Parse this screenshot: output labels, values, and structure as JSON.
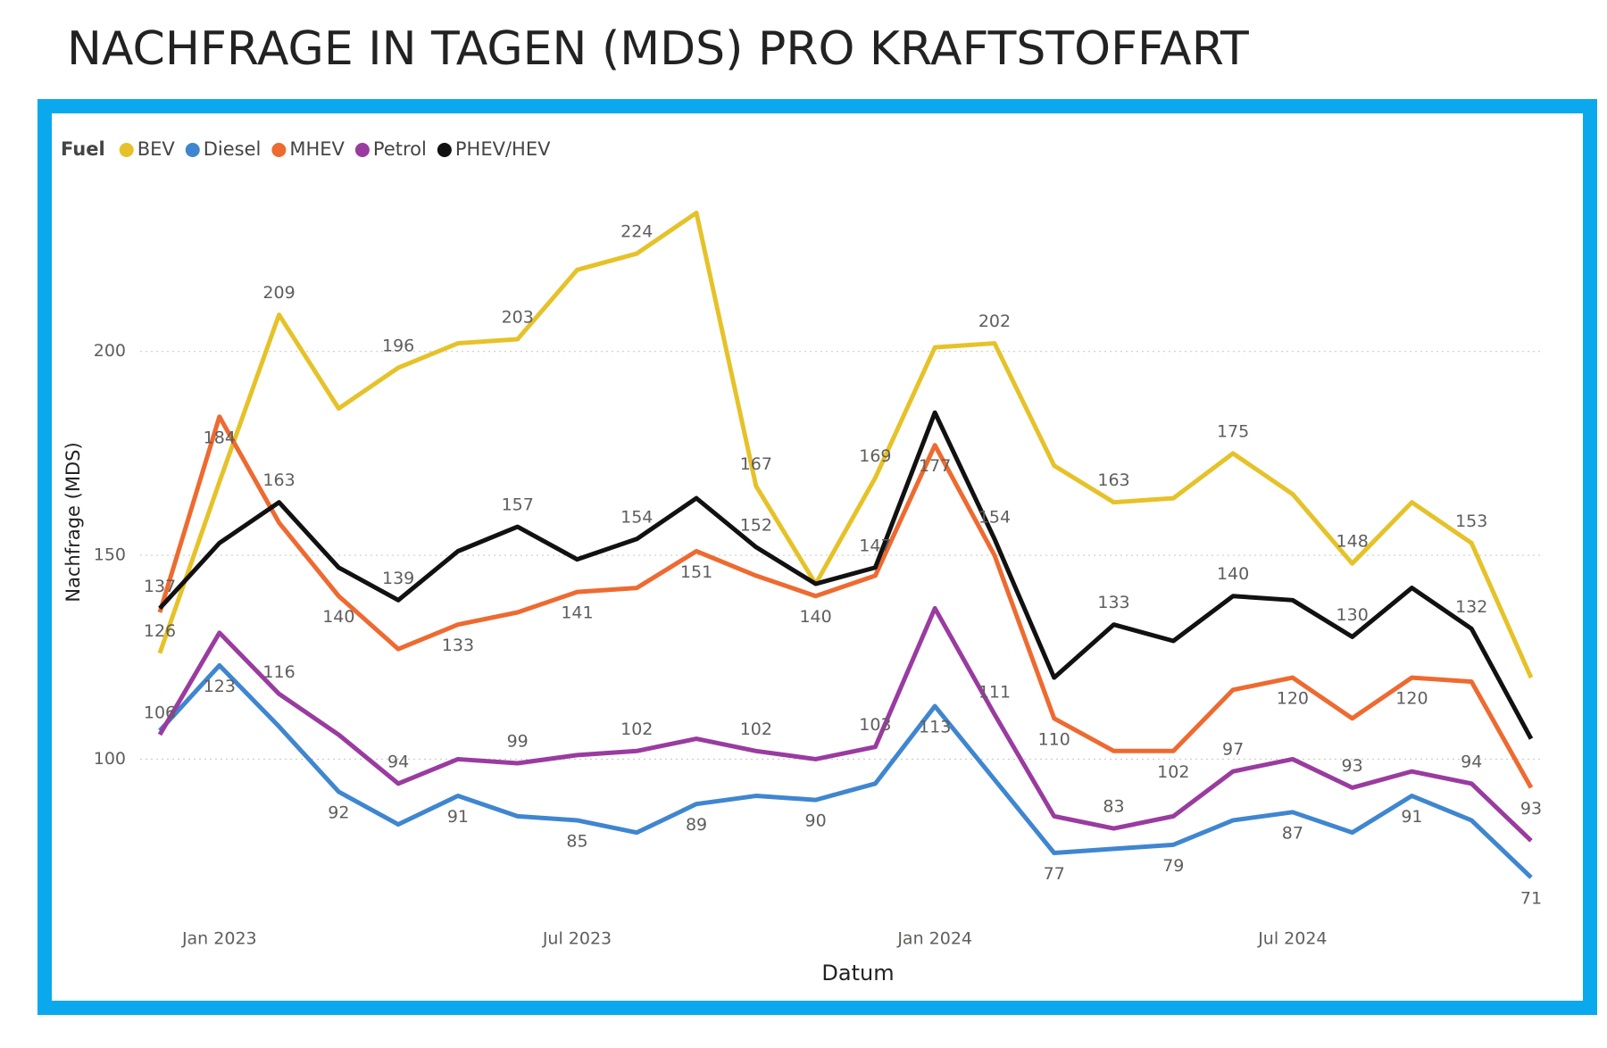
{
  "chart_data": {
    "type": "line",
    "title": "NACHFRAGE IN TAGEN (MDS) PRO KRAFTSTOFFART",
    "legend_title": "Fuel",
    "legend": "top-left",
    "grid": true,
    "x_label": "Datum",
    "y_label": "Nachfrage (MDS)",
    "x": [
      "2022-12",
      "2023-01",
      "2023-02",
      "2023-03",
      "2023-04",
      "2023-05",
      "2023-06",
      "2023-07",
      "2023-08",
      "2023-09",
      "2023-10",
      "2023-11",
      "2023-12",
      "2024-01",
      "2024-02",
      "2024-03",
      "2024-04",
      "2024-05",
      "2024-06",
      "2024-07",
      "2024-08",
      "2024-09",
      "2024-10",
      "2024-11"
    ],
    "xticks": [
      {
        "value": "2023-01",
        "label": "Jan 2023"
      },
      {
        "value": "2023-07",
        "label": "Jul 2023"
      },
      {
        "value": "2024-01",
        "label": "Jan 2024"
      },
      {
        "value": "2024-07",
        "label": "Jul 2024"
      }
    ],
    "ylim": [
      62,
      240
    ],
    "yticks": [
      100,
      150,
      200
    ],
    "series": [
      {
        "name": "BEV",
        "color": "#e6c229",
        "values": [
          126,
          168,
          209,
          186,
          196,
          202,
          203,
          220,
          224,
          234,
          167,
          143,
          169,
          201,
          202,
          172,
          163,
          164,
          175,
          165,
          148,
          163,
          153,
          120
        ]
      },
      {
        "name": "Diesel",
        "color": "#3f86d0",
        "values": [
          107,
          123,
          108,
          92,
          84,
          91,
          86,
          85,
          82,
          89,
          91,
          90,
          94,
          113,
          95,
          77,
          78,
          79,
          85,
          87,
          82,
          91,
          85,
          71
        ]
      },
      {
        "name": "MHEV",
        "color": "#ee6a30",
        "values": [
          136,
          184,
          158,
          140,
          127,
          133,
          136,
          141,
          142,
          151,
          145,
          140,
          145,
          177,
          150,
          110,
          102,
          102,
          117,
          120,
          110,
          120,
          119,
          93
        ]
      },
      {
        "name": "Petrol",
        "color": "#9a3ba0",
        "values": [
          106,
          131,
          116,
          106,
          94,
          100,
          99,
          101,
          102,
          105,
          102,
          100,
          103,
          137,
          111,
          86,
          83,
          86,
          97,
          100,
          93,
          97,
          94,
          80
        ]
      },
      {
        "name": "PHEV/HEV",
        "color": "#111111",
        "values": [
          137,
          153,
          163,
          147,
          139,
          151,
          157,
          149,
          154,
          164,
          152,
          143,
          147,
          185,
          154,
          120,
          133,
          129,
          140,
          139,
          130,
          142,
          132,
          105
        ]
      }
    ]
  }
}
